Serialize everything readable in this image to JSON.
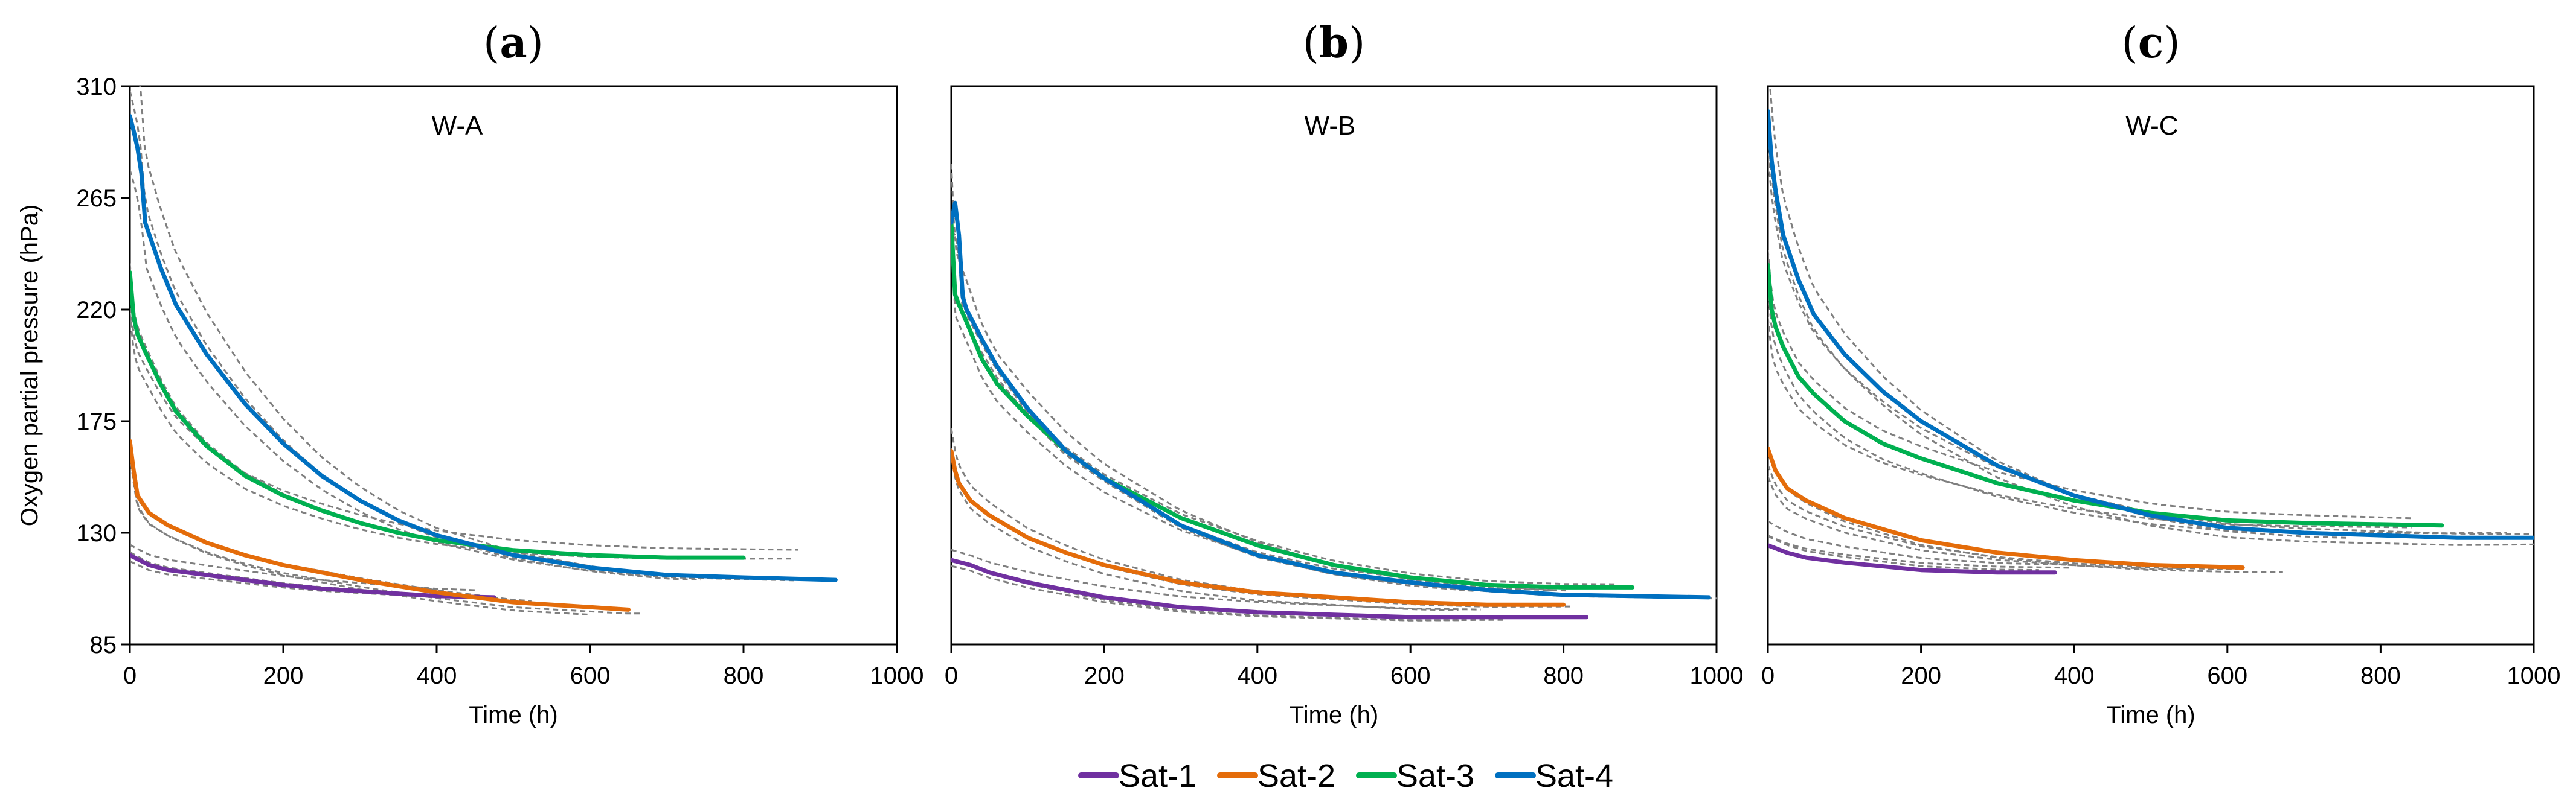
{
  "chart_data": [
    {
      "type": "line",
      "panel_label": "a",
      "title": "W-A",
      "xlabel": "Time (h)",
      "ylabel": "Oxygen partial pressure (hPa)",
      "xlim": [
        0,
        1000
      ],
      "ylim": [
        85,
        310
      ],
      "xticks": [
        0,
        200,
        400,
        600,
        800,
        1000
      ],
      "yticks": [
        85,
        130,
        175,
        220,
        265,
        310
      ],
      "series": [
        {
          "name": "Sat-1",
          "color": "#7030a0",
          "x": [
            0,
            25,
            50,
            100,
            150,
            200,
            250,
            300,
            350,
            400,
            475
          ],
          "y": [
            121,
            117,
            115,
            113,
            111,
            109,
            107.5,
            106.5,
            105.5,
            104.5,
            104
          ]
        },
        {
          "name": "Sat-2",
          "color": "#e46c0a",
          "x": [
            0,
            5,
            10,
            25,
            50,
            100,
            150,
            200,
            300,
            400,
            500,
            600,
            650
          ],
          "y": [
            167,
            155,
            145,
            138,
            133,
            126,
            121,
            117,
            111,
            106,
            102,
            100,
            99
          ]
        },
        {
          "name": "Sat-3",
          "color": "#00b050",
          "x": [
            0,
            5,
            10,
            20,
            40,
            60,
            100,
            150,
            200,
            250,
            300,
            350,
            400,
            500,
            600,
            700,
            800
          ],
          "y": [
            235,
            217,
            210,
            203,
            190,
            179,
            165,
            153,
            145,
            139,
            134,
            130,
            127,
            123,
            121,
            120,
            120
          ]
        },
        {
          "name": "Sat-4",
          "color": "#0070c0",
          "x": [
            0,
            5,
            10,
            15,
            20,
            40,
            60,
            100,
            150,
            200,
            250,
            300,
            350,
            400,
            500,
            600,
            700,
            800,
            920
          ],
          "y": [
            298,
            292,
            285,
            275,
            255,
            237,
            222,
            202,
            182,
            166,
            153,
            143,
            135,
            129,
            121,
            116,
            113,
            112,
            111
          ]
        }
      ]
    },
    {
      "type": "line",
      "panel_label": "b",
      "title": "W-B",
      "xlabel": "Time (h)",
      "ylabel": "",
      "xlim": [
        0,
        1000
      ],
      "ylim": [
        85,
        310
      ],
      "xticks": [
        0,
        200,
        400,
        600,
        800,
        1000
      ],
      "yticks": [],
      "series": [
        {
          "name": "Sat-1",
          "color": "#7030a0",
          "x": [
            0,
            25,
            50,
            100,
            200,
            300,
            400,
            500,
            600,
            700,
            830
          ],
          "y": [
            119,
            117,
            114,
            110,
            104,
            100,
            98,
            97,
            96,
            96,
            96
          ]
        },
        {
          "name": "Sat-2",
          "color": "#e46c0a",
          "x": [
            0,
            5,
            10,
            25,
            50,
            100,
            150,
            200,
            300,
            400,
            500,
            600,
            700,
            800
          ],
          "y": [
            163,
            155,
            150,
            143,
            137,
            128,
            122,
            117,
            110,
            106,
            104,
            102,
            101,
            101
          ]
        },
        {
          "name": "Sat-3",
          "color": "#00b050",
          "x": [
            0,
            5,
            10,
            20,
            40,
            60,
            100,
            150,
            200,
            300,
            400,
            500,
            600,
            700,
            800,
            890
          ],
          "y": [
            255,
            226,
            222,
            215,
            200,
            190,
            177,
            163,
            152,
            136,
            125,
            117,
            112,
            109,
            108,
            108
          ]
        },
        {
          "name": "Sat-4",
          "color": "#0070c0",
          "x": [
            0,
            5,
            10,
            15,
            20,
            40,
            60,
            100,
            150,
            200,
            300,
            400,
            500,
            600,
            700,
            800,
            990
          ],
          "y": [
            255,
            263,
            250,
            225,
            220,
            208,
            197,
            180,
            163,
            152,
            133,
            121,
            114,
            110,
            107,
            105,
            104
          ]
        }
      ]
    },
    {
      "type": "line",
      "panel_label": "c",
      "title": "W-C",
      "xlabel": "Time (h)",
      "ylabel": "",
      "xlim": [
        0,
        1000
      ],
      "ylim": [
        85,
        310
      ],
      "xticks": [
        0,
        200,
        400,
        600,
        800,
        1000
      ],
      "yticks": [],
      "series": [
        {
          "name": "Sat-1",
          "color": "#7030a0",
          "x": [
            0,
            25,
            50,
            100,
            200,
            300,
            375
          ],
          "y": [
            125,
            122,
            120,
            118,
            115,
            114,
            114
          ]
        },
        {
          "name": "Sat-2",
          "color": "#e46c0a",
          "x": [
            0,
            10,
            25,
            50,
            100,
            200,
            300,
            400,
            500,
            620
          ],
          "y": [
            164,
            155,
            148,
            143,
            136,
            127,
            122,
            119,
            117,
            116
          ]
        },
        {
          "name": "Sat-3",
          "color": "#00b050",
          "x": [
            0,
            5,
            10,
            20,
            40,
            60,
            100,
            150,
            200,
            300,
            400,
            500,
            600,
            700,
            880
          ],
          "y": [
            238,
            220,
            213,
            205,
            193,
            186,
            175,
            166,
            160,
            150,
            143,
            138,
            135,
            134,
            133
          ]
        },
        {
          "name": "Sat-4",
          "color": "#0070c0",
          "x": [
            0,
            5,
            10,
            20,
            40,
            60,
            100,
            150,
            200,
            300,
            400,
            500,
            600,
            700,
            800,
            900,
            1000
          ],
          "y": [
            300,
            280,
            268,
            250,
            232,
            218,
            202,
            187,
            175,
            157,
            145,
            137,
            132,
            130,
            129,
            128,
            128
          ]
        }
      ]
    }
  ],
  "legend": {
    "items": [
      {
        "label": "Sat-1",
        "color": "#7030a0"
      },
      {
        "label": "Sat-2",
        "color": "#e46c0a"
      },
      {
        "label": "Sat-3",
        "color": "#00b050"
      },
      {
        "label": "Sat-4",
        "color": "#0070c0"
      }
    ]
  }
}
